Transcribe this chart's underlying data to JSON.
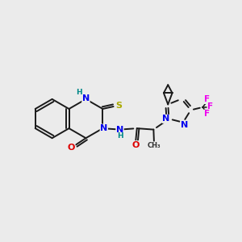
{
  "bg_color": "#ebebeb",
  "bond_color": "#1a1a1a",
  "bond_width": 1.4,
  "atom_colors": {
    "N": "#0000ee",
    "O": "#dd0000",
    "S": "#aaaa00",
    "F": "#ee00ee",
    "H": "#008888",
    "C": "#1a1a1a"
  },
  "figsize": [
    3.0,
    3.0
  ],
  "dpi": 100
}
